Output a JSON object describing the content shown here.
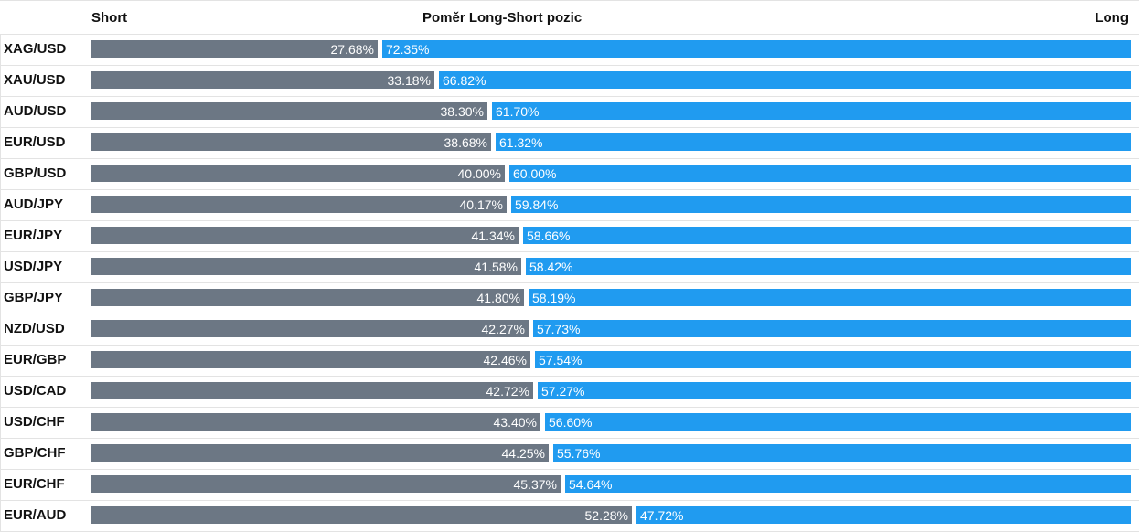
{
  "header": {
    "short_label": "Short",
    "title": "Poměr Long-Short pozic",
    "long_label": "Long"
  },
  "colors": {
    "short": "#6c7784",
    "long": "#209bf0"
  },
  "chart_data": {
    "type": "bar",
    "title": "Poměr Long-Short pozic",
    "orientation": "horizontal-stacked-100",
    "categories": [
      "XAG/USD",
      "XAU/USD",
      "AUD/USD",
      "EUR/USD",
      "GBP/USD",
      "AUD/JPY",
      "EUR/JPY",
      "USD/JPY",
      "GBP/JPY",
      "NZD/USD",
      "EUR/GBP",
      "USD/CAD",
      "USD/CHF",
      "GBP/CHF",
      "EUR/CHF",
      "EUR/AUD"
    ],
    "series": [
      {
        "name": "Short",
        "values": [
          27.68,
          33.18,
          38.3,
          38.68,
          40.0,
          40.17,
          41.34,
          41.58,
          41.8,
          42.27,
          42.46,
          42.72,
          43.4,
          44.25,
          45.37,
          52.28
        ],
        "labels": [
          "27.68%",
          "33.18%",
          "38.30%",
          "38.68%",
          "40.00%",
          "40.17%",
          "41.34%",
          "41.58%",
          "41.80%",
          "42.27%",
          "42.46%",
          "42.72%",
          "43.40%",
          "44.25%",
          "45.37%",
          "52.28%"
        ]
      },
      {
        "name": "Long",
        "values": [
          72.35,
          66.82,
          61.7,
          61.32,
          60.0,
          59.84,
          58.66,
          58.42,
          58.19,
          57.73,
          57.54,
          57.27,
          56.6,
          55.76,
          54.64,
          47.72
        ],
        "labels": [
          "72.35%",
          "66.82%",
          "61.70%",
          "61.32%",
          "60.00%",
          "59.84%",
          "58.66%",
          "58.42%",
          "58.19%",
          "57.73%",
          "57.54%",
          "57.27%",
          "56.60%",
          "55.76%",
          "54.64%",
          "47.72%"
        ]
      }
    ],
    "legend": "top"
  }
}
